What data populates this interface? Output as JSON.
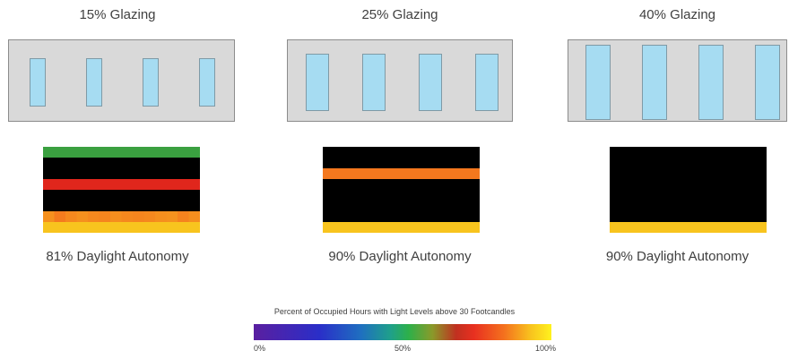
{
  "panels": [
    {
      "title": "15% Glazing",
      "caption": "81% Daylight Autonomy"
    },
    {
      "title": "25% Glazing",
      "caption": "90% Daylight Autonomy"
    },
    {
      "title": "40% Glazing",
      "caption": "90% Daylight Autonomy"
    }
  ],
  "legend": {
    "title": "Percent of Occupied Hours with Light Levels above 30 Footcandles",
    "ticks": [
      "0%",
      "50%",
      "100%"
    ]
  },
  "colors": {
    "facade": "#d9d9d9",
    "window": "#a6dcf2",
    "green": "#3aa040",
    "red": "#e0261c",
    "orange": "#f4781e",
    "yellow": "#f8c41e"
  }
}
